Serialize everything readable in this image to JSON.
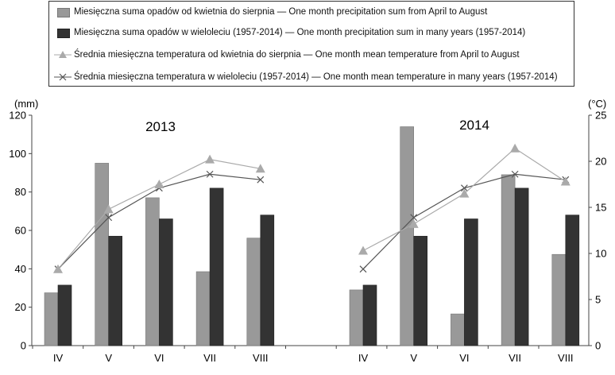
{
  "chart_data": {
    "type": "bar",
    "left_axis": {
      "unit": "(mm)",
      "ylim": [
        0,
        120
      ],
      "ticks": [
        "0",
        "20",
        "40",
        "60",
        "80",
        "100",
        "120"
      ]
    },
    "right_axis": {
      "unit": "(°C)",
      "ylim": [
        0,
        25
      ],
      "ticks": [
        "0",
        "5",
        "10",
        "15",
        "20",
        "25"
      ]
    },
    "categories": [
      "IV",
      "V",
      "VI",
      "VII",
      "VIII"
    ],
    "colors": {
      "bar_light": "#999999",
      "bar_dark": "#333333",
      "line_light": "#aaaaaa",
      "line_dark": "#555555"
    },
    "legend": [
      {
        "key": "bar_light",
        "text": "Miesięczna suma opadów od kwietnia do sierpnia — One month precipitation sum from April to August"
      },
      {
        "key": "bar_dark",
        "text": "Miesięczna suma opadów w wieloleciu (1957-2014) — One month precipitation sum in many years (1957-2014)"
      },
      {
        "key": "line_light",
        "text": "Średnia miesięczna temperatura od kwietnia do sierpnia — One month mean temperature from April to August"
      },
      {
        "key": "line_dark",
        "text": "Średnia miesięczna temperatura w wieloleciu (1957-2014) — One month mean temperature in many years (1957-2014)"
      }
    ],
    "panels": [
      {
        "label": "2013",
        "precipitation": [
          27.5,
          95,
          77,
          38.5,
          56
        ],
        "precipitation_longterm": [
          31.5,
          57,
          66,
          82,
          68
        ],
        "temperature": [
          8.3,
          14.8,
          17.5,
          20.2,
          19.2
        ],
        "temperature_longterm": [
          8.3,
          13.9,
          17.1,
          18.6,
          18.0
        ]
      },
      {
        "label": "2014",
        "precipitation": [
          29,
          114,
          16.5,
          89,
          47.5
        ],
        "precipitation_longterm": [
          31.5,
          57,
          66,
          82,
          68
        ],
        "temperature": [
          10.3,
          13.2,
          16.5,
          21.4,
          17.8
        ],
        "temperature_longterm": [
          8.3,
          13.9,
          17.1,
          18.6,
          18.0
        ]
      }
    ]
  }
}
